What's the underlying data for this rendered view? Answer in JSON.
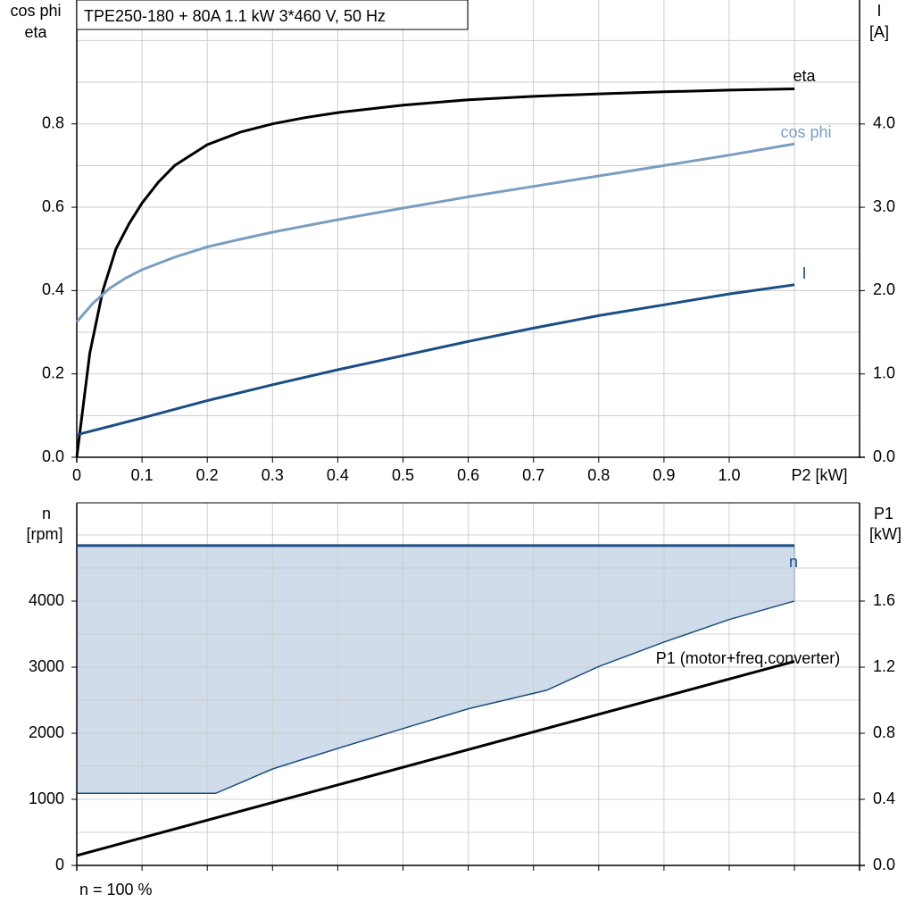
{
  "chart_data": [
    {
      "type": "line",
      "title": "TPE250-180 + 80A   1.1 kW   3*460 V, 50 Hz",
      "xlabel": "P2 [kW]",
      "ylabel_left": [
        "cos phi",
        "eta"
      ],
      "ylabel_right": [
        "I",
        "[A]"
      ],
      "xlim": [
        0,
        1.2
      ],
      "ylim_left": [
        0,
        1.0
      ],
      "ylim_right": [
        0,
        5.0
      ],
      "grid": true,
      "x_ticks": [
        "0",
        "0.1",
        "0.2",
        "0.3",
        "0.4",
        "0.5",
        "0.6",
        "0.7",
        "0.8",
        "0.9",
        "1.0"
      ],
      "y_ticks_left": [
        "0.0",
        "0.2",
        "0.4",
        "0.6",
        "0.8"
      ],
      "y_ticks_right": [
        "0.0",
        "1.0",
        "2.0",
        "3.0",
        "4.0"
      ],
      "series": [
        {
          "name": "eta",
          "axis": "left",
          "color": "#000000",
          "x": [
            0,
            0.02,
            0.04,
            0.06,
            0.08,
            0.1,
            0.125,
            0.15,
            0.2,
            0.25,
            0.3,
            0.35,
            0.4,
            0.5,
            0.6,
            0.7,
            0.8,
            0.9,
            1.0,
            1.1
          ],
          "y": [
            0,
            0.25,
            0.4,
            0.5,
            0.56,
            0.61,
            0.66,
            0.7,
            0.75,
            0.78,
            0.8,
            0.815,
            0.827,
            0.845,
            0.858,
            0.866,
            0.872,
            0.877,
            0.881,
            0.884
          ]
        },
        {
          "name": "cos phi",
          "axis": "left",
          "color": "#7b9ec0",
          "x": [
            0,
            0.025,
            0.05,
            0.075,
            0.1,
            0.15,
            0.2,
            0.25,
            0.3,
            0.4,
            0.5,
            0.6,
            0.7,
            0.8,
            0.9,
            1.0,
            1.1
          ],
          "y": [
            0.325,
            0.37,
            0.405,
            0.43,
            0.45,
            0.48,
            0.505,
            0.523,
            0.54,
            0.57,
            0.598,
            0.625,
            0.65,
            0.675,
            0.7,
            0.725,
            0.752
          ]
        },
        {
          "name": "I",
          "axis": "right",
          "color": "#1a4e84",
          "x": [
            0,
            0.1,
            0.2,
            0.3,
            0.4,
            0.5,
            0.6,
            0.7,
            0.8,
            0.9,
            1.0,
            1.1
          ],
          "y": [
            0.27,
            0.47,
            0.68,
            0.87,
            1.05,
            1.22,
            1.39,
            1.55,
            1.7,
            1.83,
            1.96,
            2.07
          ]
        }
      ]
    },
    {
      "type": "line",
      "ylabel_left": [
        "n",
        "[rpm]"
      ],
      "ylabel_right": [
        "P1",
        "[kW]"
      ],
      "xlim": [
        0,
        1.2
      ],
      "ylim_left": [
        0,
        5000
      ],
      "ylim_right": [
        0,
        2.0
      ],
      "grid": true,
      "y_ticks_left": [
        "0",
        "1000",
        "2000",
        "3000",
        "4000"
      ],
      "y_ticks_right": [
        "0.0",
        "0.4",
        "0.8",
        "1.2",
        "1.6"
      ],
      "footer": "n = 100 %",
      "area": {
        "color": "#1a4e84",
        "fill": "#d0dce9",
        "x": [
          0,
          0.1,
          0.213,
          0.3,
          0.4,
          0.5,
          0.6,
          0.72,
          0.8,
          0.9,
          1.0,
          1.1
        ],
        "lower": [
          1090,
          1090,
          1090,
          1460,
          1770,
          2070,
          2370,
          2650,
          3010,
          3380,
          3720,
          4000
        ],
        "upper": [
          4840,
          4840,
          4840,
          4840,
          4840,
          4840,
          4840,
          4840,
          4840,
          4840,
          4840,
          4840
        ]
      },
      "series": [
        {
          "name": "n",
          "axis": "left",
          "color": "#1a4e84",
          "x": [
            0,
            1.1
          ],
          "y": [
            4840,
            4840
          ]
        },
        {
          "name": "P1 (motor+freq.converter)",
          "axis": "right",
          "color": "#000000",
          "x": [
            0,
            1.1
          ],
          "y": [
            0.06,
            1.235
          ]
        }
      ]
    }
  ]
}
